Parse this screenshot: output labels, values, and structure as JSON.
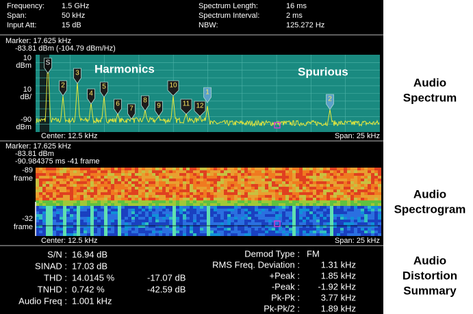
{
  "header": {
    "left": [
      {
        "label": "Frequency:",
        "value": "1.5 GHz"
      },
      {
        "label": "Span:",
        "value": "50 kHz"
      },
      {
        "label": "Input Att:",
        "value": "15 dB"
      }
    ],
    "right": [
      {
        "label": "Spectrum Length:",
        "value": "16 ms"
      },
      {
        "label": "Spectrum Interval:",
        "value": "2 ms"
      },
      {
        "label": "NBW:",
        "value": "125.272 Hz"
      }
    ]
  },
  "spectrum": {
    "marker": [
      "Marker: 17.625 kHz",
      "-83.81 dBm (-104.79 dBm/Hz)"
    ],
    "y_labels": [
      [
        "10",
        "dBm"
      ],
      [
        "10",
        "dB/"
      ],
      [
        "-90",
        "dBm"
      ]
    ],
    "overlays": [
      "Harmonics",
      "Spurious"
    ],
    "flags": [
      "S",
      "2",
      "3",
      "4",
      "5",
      "6",
      "7",
      "8",
      "9",
      "10",
      "11",
      "12",
      "1",
      "2"
    ],
    "center": "Center: 12.5 kHz",
    "span": "Span: 25 kHz"
  },
  "spectrogram": {
    "marker": [
      "Marker: 17.625 kHz",
      "-83.81 dBm",
      "-90.984375 ms  -41 frame"
    ],
    "y_labels": [
      [
        "-89",
        "frame"
      ],
      [
        "-32",
        "frame"
      ]
    ],
    "center": "Center: 12.5 kHz",
    "span": "Span: 25 kHz"
  },
  "summary": {
    "left": [
      [
        "S/N :",
        "16.94 dB"
      ],
      [
        "SINAD :",
        "17.03 dB"
      ],
      [
        "THD :",
        "14.0145 %",
        "-17.07 dB"
      ],
      [
        "TNHD :",
        "0.742  %",
        "-42.59 dB"
      ],
      [
        "Audio Freq :",
        "1.001 kHz"
      ]
    ],
    "right": [
      [
        "Demod Type :",
        "FM"
      ],
      [
        "RMS Freq. Deviation :",
        "1.31 kHz"
      ],
      [
        "+Peak :",
        "1.85 kHz"
      ],
      [
        "-Peak :",
        "-1.92 kHz"
      ],
      [
        "Pk-Pk :",
        "3.77 kHz"
      ],
      [
        "Pk-Pk/2 :",
        "1.89 kHz"
      ]
    ]
  },
  "side_labels": [
    [
      "Audio",
      "Spectrum"
    ],
    [
      "Audio",
      "Spectrogram"
    ],
    [
      "Audio",
      "Distortion",
      "Summary"
    ]
  ]
}
